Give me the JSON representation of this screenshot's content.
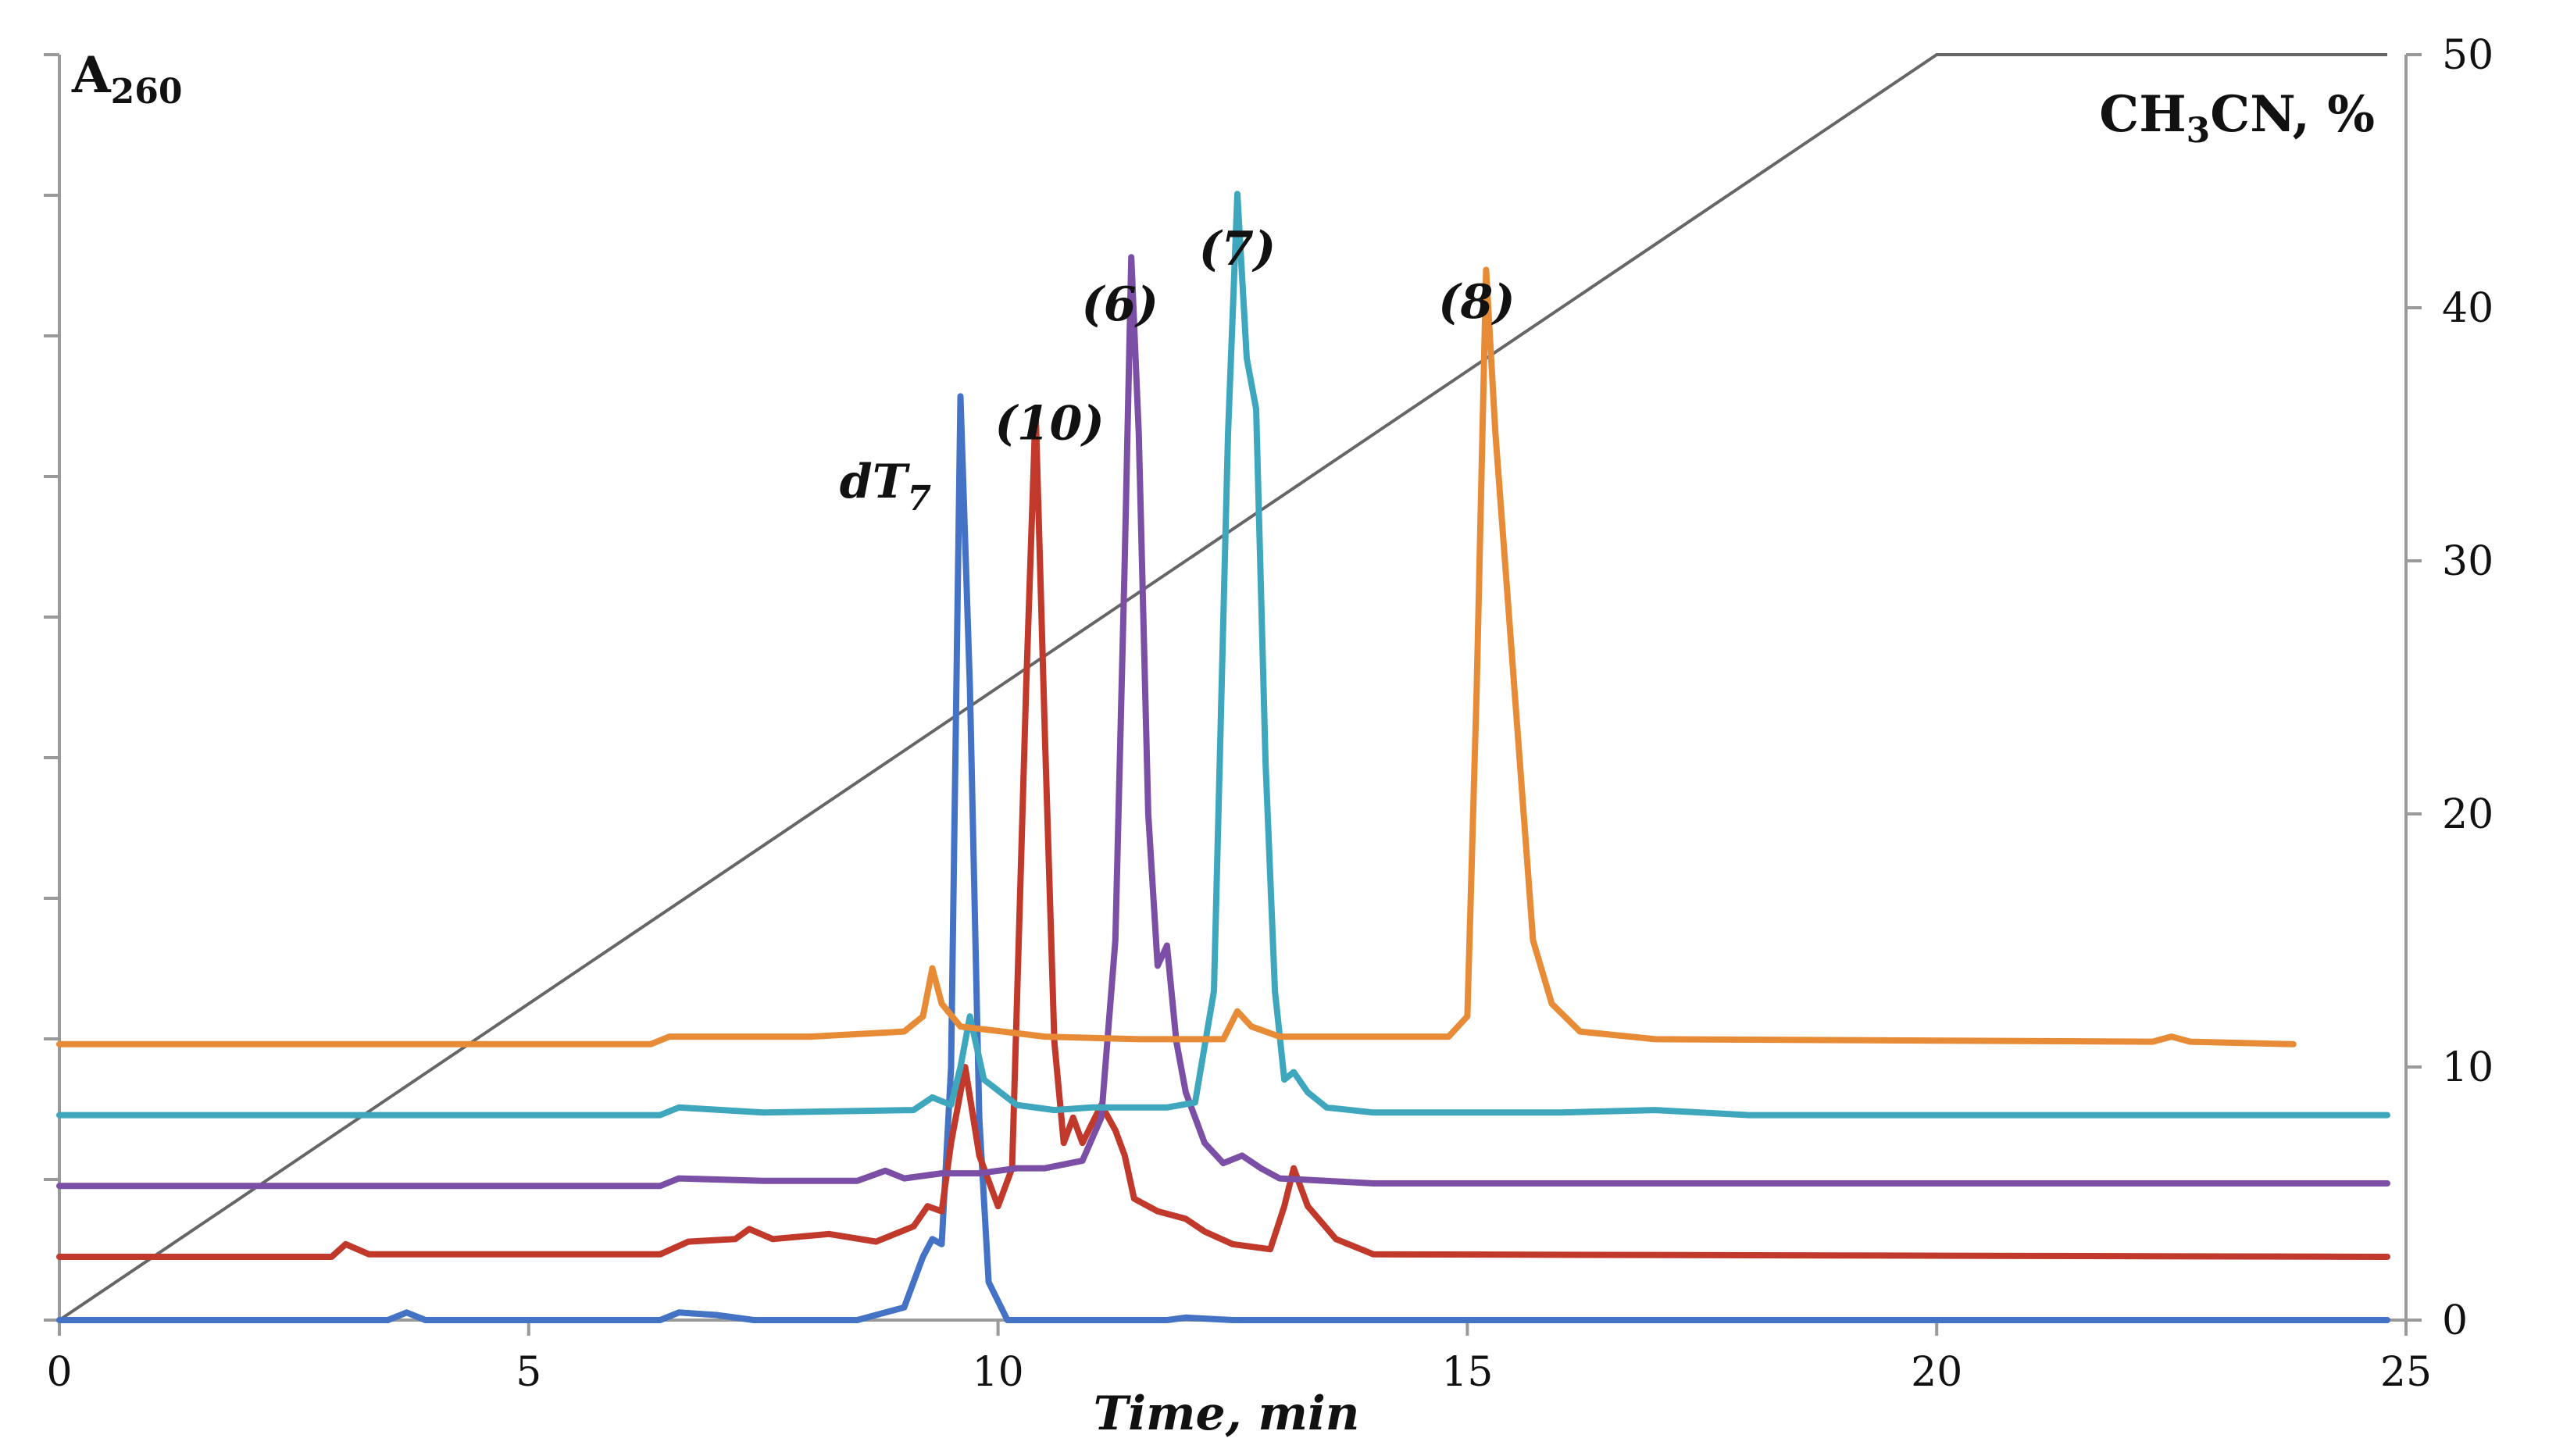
{
  "chart_data": {
    "type": "line",
    "title": "",
    "xlabel": "Time, min",
    "ylabel_left": {
      "main": "A",
      "sub": "260"
    },
    "ylabel_right": {
      "pre": "CH",
      "sub": "3",
      "post": "CN, %"
    },
    "xlim": [
      0,
      25
    ],
    "ylim_right": [
      0,
      50
    ],
    "x_ticks": [
      "0",
      "5",
      "10",
      "15",
      "20",
      "25"
    ],
    "y_ticks_right": [
      "0",
      "10",
      "20",
      "30",
      "40",
      "50"
    ],
    "grid": false,
    "gradient": {
      "name": "CH3CN, %",
      "color": "#666666",
      "points": [
        [
          0,
          0
        ],
        [
          20,
          50
        ],
        [
          24.8,
          50
        ]
      ]
    },
    "series": [
      {
        "name": "dT7",
        "color": "#4472C4",
        "baseline": 0.0,
        "points": [
          [
            0,
            0
          ],
          [
            3.5,
            0
          ],
          [
            3.7,
            0.3
          ],
          [
            3.9,
            0
          ],
          [
            6.4,
            0
          ],
          [
            6.6,
            0.3
          ],
          [
            7.0,
            0.2
          ],
          [
            7.4,
            0
          ],
          [
            8.5,
            0
          ],
          [
            9.0,
            0.5
          ],
          [
            9.2,
            2.5
          ],
          [
            9.3,
            3.2
          ],
          [
            9.4,
            3.0
          ],
          [
            9.5,
            10
          ],
          [
            9.6,
            36.5
          ],
          [
            9.7,
            25
          ],
          [
            9.8,
            8
          ],
          [
            9.9,
            1.5
          ],
          [
            10.1,
            0
          ],
          [
            11.8,
            0
          ],
          [
            12.0,
            0.1
          ],
          [
            12.5,
            0
          ],
          [
            24.8,
            0
          ]
        ]
      },
      {
        "name": "(10)",
        "color": "#C0392B",
        "baseline": 2.5,
        "points": [
          [
            0,
            2.5
          ],
          [
            2.9,
            2.5
          ],
          [
            3.05,
            3.0
          ],
          [
            3.3,
            2.6
          ],
          [
            6.4,
            2.6
          ],
          [
            6.7,
            3.1
          ],
          [
            7.2,
            3.2
          ],
          [
            7.35,
            3.6
          ],
          [
            7.6,
            3.2
          ],
          [
            8.2,
            3.4
          ],
          [
            8.7,
            3.1
          ],
          [
            9.1,
            3.7
          ],
          [
            9.25,
            4.5
          ],
          [
            9.4,
            4.3
          ],
          [
            9.5,
            7.0
          ],
          [
            9.65,
            10.0
          ],
          [
            9.8,
            6.5
          ],
          [
            10.0,
            4.5
          ],
          [
            10.15,
            6.0
          ],
          [
            10.3,
            25.0
          ],
          [
            10.4,
            36.0
          ],
          [
            10.5,
            23.0
          ],
          [
            10.6,
            11.0
          ],
          [
            10.7,
            7.0
          ],
          [
            10.8,
            8.0
          ],
          [
            10.9,
            7.0
          ],
          [
            11.1,
            8.5
          ],
          [
            11.25,
            7.5
          ],
          [
            11.35,
            6.5
          ],
          [
            11.45,
            4.8
          ],
          [
            11.7,
            4.3
          ],
          [
            12.0,
            4.0
          ],
          [
            12.2,
            3.5
          ],
          [
            12.5,
            3.0
          ],
          [
            12.9,
            2.8
          ],
          [
            13.05,
            4.5
          ],
          [
            13.15,
            6.0
          ],
          [
            13.3,
            4.5
          ],
          [
            13.6,
            3.2
          ],
          [
            14.0,
            2.6
          ],
          [
            24.8,
            2.5
          ]
        ]
      },
      {
        "name": "(6)",
        "color": "#7B4FA5",
        "baseline": 5.3,
        "points": [
          [
            0,
            5.3
          ],
          [
            6.4,
            5.3
          ],
          [
            6.6,
            5.6
          ],
          [
            7.5,
            5.5
          ],
          [
            8.5,
            5.5
          ],
          [
            8.8,
            5.9
          ],
          [
            9.0,
            5.6
          ],
          [
            9.4,
            5.8
          ],
          [
            9.8,
            5.8
          ],
          [
            10.2,
            6.0
          ],
          [
            10.5,
            6.0
          ],
          [
            10.9,
            6.3
          ],
          [
            11.1,
            8.0
          ],
          [
            11.25,
            15.0
          ],
          [
            11.35,
            30.0
          ],
          [
            11.42,
            42.0
          ],
          [
            11.5,
            35.0
          ],
          [
            11.6,
            20.0
          ],
          [
            11.7,
            14.0
          ],
          [
            11.8,
            14.8
          ],
          [
            11.9,
            11.0
          ],
          [
            12.0,
            9.0
          ],
          [
            12.2,
            7.0
          ],
          [
            12.4,
            6.2
          ],
          [
            12.6,
            6.5
          ],
          [
            12.8,
            6.0
          ],
          [
            13.0,
            5.6
          ],
          [
            14.0,
            5.4
          ],
          [
            24.8,
            5.4
          ]
        ]
      },
      {
        "name": "(7)",
        "color": "#3FA7BD",
        "baseline": 8.1,
        "points": [
          [
            0,
            8.1
          ],
          [
            6.4,
            8.1
          ],
          [
            6.6,
            8.4
          ],
          [
            7.5,
            8.2
          ],
          [
            9.1,
            8.3
          ],
          [
            9.3,
            8.8
          ],
          [
            9.5,
            8.5
          ],
          [
            9.6,
            10.0
          ],
          [
            9.7,
            12.0
          ],
          [
            9.85,
            9.5
          ],
          [
            10.2,
            8.5
          ],
          [
            10.6,
            8.3
          ],
          [
            11.0,
            8.4
          ],
          [
            11.8,
            8.4
          ],
          [
            12.1,
            8.6
          ],
          [
            12.3,
            13.0
          ],
          [
            12.45,
            35.0
          ],
          [
            12.55,
            44.5
          ],
          [
            12.65,
            38.0
          ],
          [
            12.75,
            36.0
          ],
          [
            12.85,
            22.0
          ],
          [
            12.95,
            13.0
          ],
          [
            13.05,
            9.5
          ],
          [
            13.15,
            9.8
          ],
          [
            13.3,
            9.0
          ],
          [
            13.5,
            8.4
          ],
          [
            14.0,
            8.2
          ],
          [
            16.0,
            8.2
          ],
          [
            17.0,
            8.3
          ],
          [
            18.0,
            8.1
          ],
          [
            24.8,
            8.1
          ]
        ]
      },
      {
        "name": "(8)",
        "color": "#E88B37",
        "baseline": 10.9,
        "points": [
          [
            0,
            10.9
          ],
          [
            6.3,
            10.9
          ],
          [
            6.5,
            11.2
          ],
          [
            8.0,
            11.2
          ],
          [
            9.0,
            11.4
          ],
          [
            9.2,
            12.0
          ],
          [
            9.3,
            13.9
          ],
          [
            9.4,
            12.5
          ],
          [
            9.6,
            11.6
          ],
          [
            10.5,
            11.2
          ],
          [
            11.5,
            11.1
          ],
          [
            12.4,
            11.1
          ],
          [
            12.55,
            12.2
          ],
          [
            12.7,
            11.6
          ],
          [
            13.0,
            11.2
          ],
          [
            14.8,
            11.2
          ],
          [
            15.0,
            12.0
          ],
          [
            15.1,
            25.0
          ],
          [
            15.2,
            41.5
          ],
          [
            15.3,
            35.0
          ],
          [
            15.4,
            30.0
          ],
          [
            15.55,
            22.5
          ],
          [
            15.7,
            15.0
          ],
          [
            15.9,
            12.5
          ],
          [
            16.2,
            11.4
          ],
          [
            17.0,
            11.1
          ],
          [
            22.3,
            11.0
          ],
          [
            22.5,
            11.2
          ],
          [
            22.7,
            11.0
          ],
          [
            23.8,
            10.9
          ]
        ]
      }
    ],
    "annotations": [
      {
        "series": "dT7",
        "label": "dT",
        "sub": "7",
        "x": 8.8,
        "y": 32.5
      },
      {
        "series": "(10)",
        "label": "(10)",
        "x": 10.55,
        "y": 34.8
      },
      {
        "series": "(6)",
        "label": "(6)",
        "x": 11.3,
        "y": 39.5
      },
      {
        "series": "(7)",
        "label": "(7)",
        "x": 12.55,
        "y": 41.7
      },
      {
        "series": "(8)",
        "label": "(8)",
        "x": 15.1,
        "y": 39.6
      }
    ]
  }
}
